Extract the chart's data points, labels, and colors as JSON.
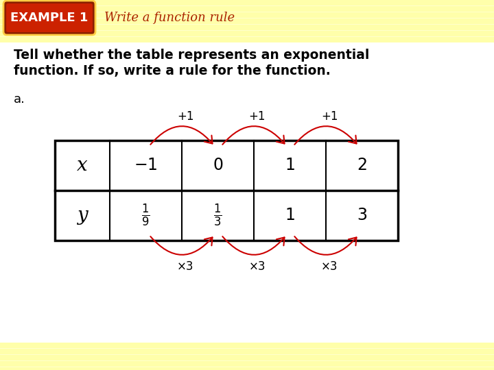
{
  "bg_white": "#ffffff",
  "bg_cream": "#ffffcc",
  "stripe_color": "#ffffaa",
  "header_bg_outer": "#8b2000",
  "header_bg_inner": "#cc2200",
  "header_text": "EXAMPLE 1",
  "header_text_color": "#ffffff",
  "subtitle": "Write a function rule",
  "subtitle_color": "#aa2200",
  "body_text_line1": "Tell whether the table represents an exponential",
  "body_text_line2": "function. If so, write a rule for the function.",
  "body_text_color": "#000000",
  "label_a": "a.",
  "table_x_label": "x",
  "table_y_label": "y",
  "arrow_color": "#cc0000",
  "table_border_color": "#000000",
  "table_bg": "#ffffff",
  "top_labels": [
    "+1",
    "+1",
    "+1"
  ],
  "bottom_labels": [
    "×3",
    "×3",
    "×3"
  ]
}
